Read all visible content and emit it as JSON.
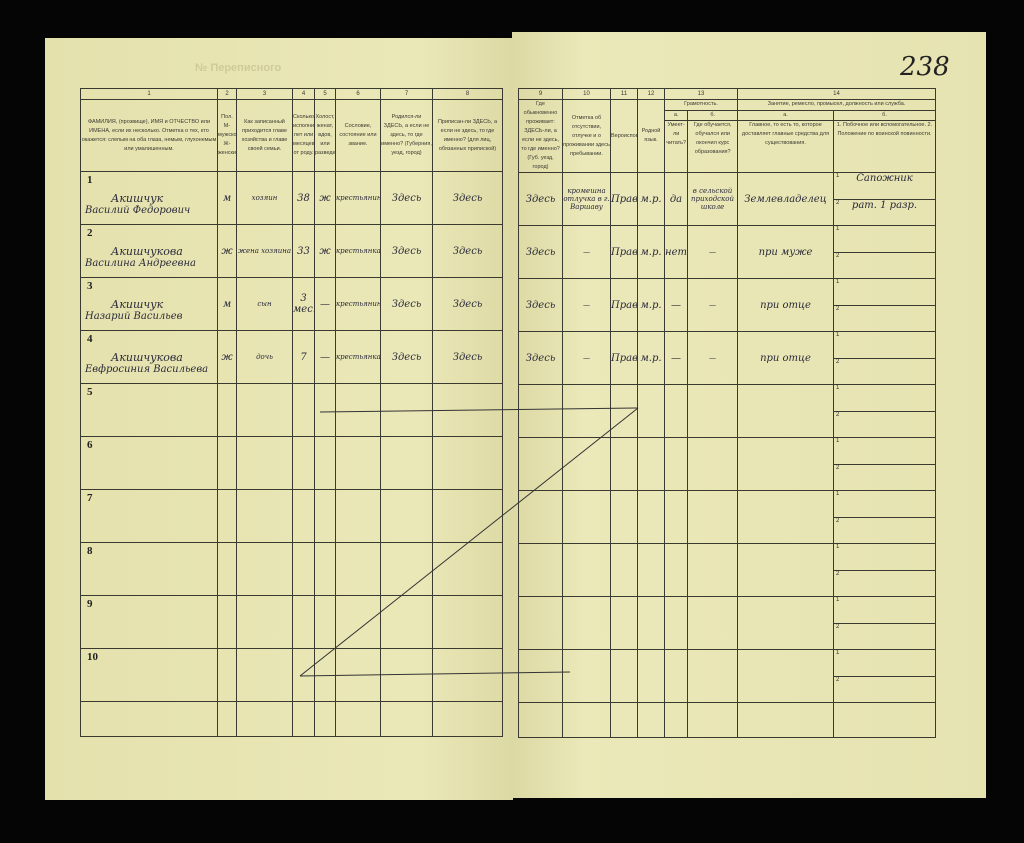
{
  "page_number": "238",
  "header_left": {
    "number": "№ Переписного"
  },
  "columns_left": [
    {
      "n": "1",
      "label": "ФАМИЛИЯ, (прозвище), ИМЯ и ОТЧЕСТВО или ИМЕНА, если их несколько. Отметка о тех, кто окажется: слепым на оба глаза, немым, глухонемым или умалишенным."
    },
    {
      "n": "2",
      "label": "Пол. М-мужской. Ж-женский."
    },
    {
      "n": "3",
      "label": "Как записанный приходится главе хозяйства и главе своей семьи."
    },
    {
      "n": "4",
      "label": "Сколько исполнилось лет или месяцев от роду."
    },
    {
      "n": "5",
      "label": "Холост, женат, вдов, или разведен."
    },
    {
      "n": "6",
      "label": "Сословие, состояние или звание."
    },
    {
      "n": "7",
      "label": "Родился-ли ЗДЕСЬ, а если не здесь, то где именно? (Губерния, уезд, город)"
    },
    {
      "n": "8",
      "label": "Приписан-ли ЗДЕСЬ, а если не здесь, то где именно? (для лиц, обязанных припиской)"
    }
  ],
  "columns_right": [
    {
      "n": "9",
      "label": "Где обыкновенно проживает: ЗДЕСЬ-ли, а если не здесь, то где именно? (Губ. уезд, город)"
    },
    {
      "n": "10",
      "label": "Отметка об отсутствии, отлучке и о проживании здесь пребывании."
    },
    {
      "n": "11",
      "label": "Вероисповедание."
    },
    {
      "n": "12",
      "label": "Родной язык."
    },
    {
      "n": "13",
      "label": "Грамотность.",
      "sub": [
        {
          "n": "а.",
          "label": "Умеет-ли читать?"
        },
        {
          "n": "б.",
          "label": "Где обучается, обучался или окончил курс образования?"
        }
      ]
    },
    {
      "n": "14",
      "label": "Занятие, ремесло, промысел, должность или служба.",
      "sub": [
        {
          "n": "а.",
          "label": "Главное, то есть то, которое доставляет главные средства для существования."
        },
        {
          "n": "б.",
          "label": "1. Побочное или вспомогательное. 2. Положение по воинской повинности."
        }
      ]
    }
  ],
  "rows": [
    {
      "n": "1",
      "surname": "Акишчук",
      "given": "Василий Федорович",
      "sex": "м",
      "relation": "хозяин",
      "age": "38",
      "marital": "ж",
      "estate": "крестьянин",
      "born": "Здесь",
      "registered": "Здесь",
      "resides": "Здесь",
      "absence": "кромешна отлучка в г. Варшаву",
      "religion": "Прав.",
      "language": "м.р.",
      "reads": "да",
      "school": "в сельской приходской школе",
      "main": "Землевладелец",
      "side1": "Сапожник",
      "side2": "рат. 1 разр."
    },
    {
      "n": "2",
      "surname": "Акишчукова",
      "given": "Василина Андреевна",
      "sex": "ж",
      "relation": "жена хозяина",
      "age": "33",
      "marital": "ж",
      "estate": "крестьянка",
      "born": "Здесь",
      "registered": "Здесь",
      "resides": "Здесь",
      "absence": "—",
      "religion": "Прав.",
      "language": "м.р.",
      "reads": "нет",
      "school": "—",
      "main": "при муже",
      "side1": "",
      "side2": ""
    },
    {
      "n": "3",
      "surname": "Акишчук",
      "given": "Назарий Васильев",
      "sex": "м",
      "relation": "сын",
      "age": "3 мес.",
      "marital": "—",
      "estate": "крестьянин",
      "born": "Здесь",
      "registered": "Здесь",
      "resides": "Здесь",
      "absence": "—",
      "religion": "Прав.",
      "language": "м.р.",
      "reads": "—",
      "school": "—",
      "main": "при отце",
      "side1": "",
      "side2": ""
    },
    {
      "n": "4",
      "surname": "Акишчукова",
      "given": "Евфросиния Васильева",
      "sex": "ж",
      "relation": "дочь",
      "age": "7",
      "marital": "—",
      "estate": "крестьянка",
      "born": "Здесь",
      "registered": "Здесь",
      "resides": "Здесь",
      "absence": "—",
      "religion": "Прав.",
      "language": "м.р.",
      "reads": "—",
      "school": "—",
      "main": "при отце",
      "side1": "",
      "side2": ""
    }
  ],
  "empty_rows": [
    "5",
    "6",
    "7",
    "8",
    "9",
    "10"
  ],
  "sub_labels": [
    "1",
    "2"
  ]
}
